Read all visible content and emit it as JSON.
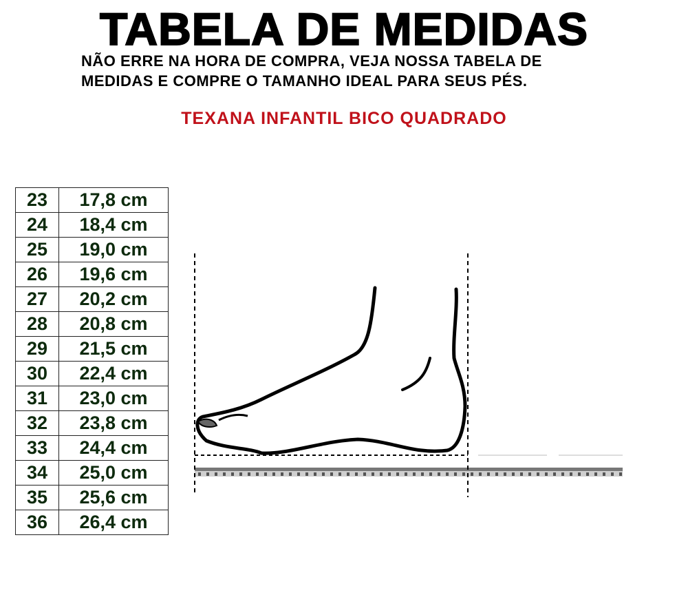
{
  "header": {
    "title": "TABELA DE MEDIDAS",
    "subtitle": [
      "NÃO ERRE NA HORA DE COMPRA, VEJA NOSSA TABELA DE",
      "MEDIDAS E COMPRE O TAMANHO IDEAL PARA SEUS PÉS."
    ],
    "product": "TEXANA INFANTIL BICO QUADRADO"
  },
  "table": {
    "rows": [
      [
        "23",
        "17,8 cm"
      ],
      [
        "24",
        "18,4 cm"
      ],
      [
        "25",
        "19,0 cm"
      ],
      [
        "26",
        "19,6 cm"
      ],
      [
        "27",
        "20,2 cm"
      ],
      [
        "28",
        "20,8 cm"
      ],
      [
        "29",
        "21,5 cm"
      ],
      [
        "30",
        "22,4 cm"
      ],
      [
        "31",
        "23,0 cm"
      ],
      [
        "32",
        "23,8 cm"
      ],
      [
        "33",
        "24,4 cm"
      ],
      [
        "34",
        "25,0 cm"
      ],
      [
        "35",
        "25,6 cm"
      ],
      [
        "36",
        "26,4 cm"
      ]
    ]
  }
}
